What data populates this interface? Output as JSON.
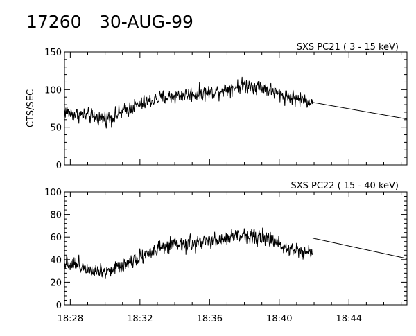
{
  "header": {
    "event_id": "17260",
    "date": "30-AUG-99"
  },
  "chart_data": [
    {
      "type": "line",
      "title": "SXS PC21  ( 3 - 15 keV)",
      "ylabel": "CTS/SEC",
      "xlabel": "",
      "x_unit": "time (hh:mm)",
      "xlim": [
        "18:27:40",
        "18:47:20"
      ],
      "ylim": [
        0,
        150
      ],
      "yticks": [
        0,
        50,
        100,
        150
      ],
      "xticks": [
        "18:28",
        "18:32",
        "18:36",
        "18:40",
        "18:44"
      ],
      "noise_amplitude": 8,
      "series": [
        {
          "x": [
            "18:27:40",
            "18:28:00",
            "18:28:30",
            "18:29:00",
            "18:29:30",
            "18:30:00",
            "18:30:30",
            "18:31:00",
            "18:31:30",
            "18:32:00",
            "18:32:30",
            "18:33:00",
            "18:33:30",
            "18:34:00",
            "18:34:30",
            "18:35:00",
            "18:35:30",
            "18:36:00",
            "18:36:30",
            "18:37:00",
            "18:37:30",
            "18:38:00",
            "18:38:30",
            "18:39:00",
            "18:39:30",
            "18:40:00",
            "18:40:30",
            "18:41:00",
            "18:41:30",
            "18:41:55"
          ],
          "y": [
            72,
            68,
            67,
            65,
            63,
            62,
            64,
            70,
            76,
            80,
            84,
            88,
            90,
            91,
            93,
            94,
            95,
            96,
            98,
            101,
            104,
            106,
            105,
            104,
            99,
            94,
            91,
            88,
            86,
            84
          ],
          "style": "noisy"
        },
        {
          "x": [
            "18:41:55",
            "18:47:20"
          ],
          "y": [
            83,
            61
          ],
          "style": "straight"
        }
      ]
    },
    {
      "type": "line",
      "title": "SXS PC22  ( 15 - 40 keV)",
      "ylabel": "",
      "xlabel": "",
      "x_unit": "time (hh:mm)",
      "xlim": [
        "18:27:40",
        "18:47:20"
      ],
      "ylim": [
        0,
        100
      ],
      "yticks": [
        0,
        20,
        40,
        60,
        80,
        100
      ],
      "xticks": [
        "18:28",
        "18:32",
        "18:36",
        "18:40",
        "18:44"
      ],
      "noise_amplitude": 5.5,
      "series": [
        {
          "x": [
            "18:27:40",
            "18:28:00",
            "18:28:30",
            "18:29:00",
            "18:29:30",
            "18:30:00",
            "18:30:30",
            "18:31:00",
            "18:31:30",
            "18:32:00",
            "18:32:30",
            "18:33:00",
            "18:33:30",
            "18:34:00",
            "18:34:30",
            "18:35:00",
            "18:35:30",
            "18:36:00",
            "18:36:30",
            "18:37:00",
            "18:37:30",
            "18:38:00",
            "18:38:30",
            "18:39:00",
            "18:39:30",
            "18:40:00",
            "18:40:30",
            "18:41:00",
            "18:41:30",
            "18:41:55"
          ],
          "y": [
            38,
            37,
            35,
            33,
            31,
            30,
            32,
            35,
            39,
            43,
            46,
            49,
            51,
            52,
            53,
            54,
            55,
            56,
            57,
            59,
            61,
            62,
            61,
            60,
            57,
            54,
            51,
            49,
            47,
            46
          ],
          "style": "noisy"
        },
        {
          "x": [
            "18:41:55",
            "18:47:20"
          ],
          "y": [
            59,
            41
          ],
          "style": "straight"
        }
      ]
    }
  ]
}
